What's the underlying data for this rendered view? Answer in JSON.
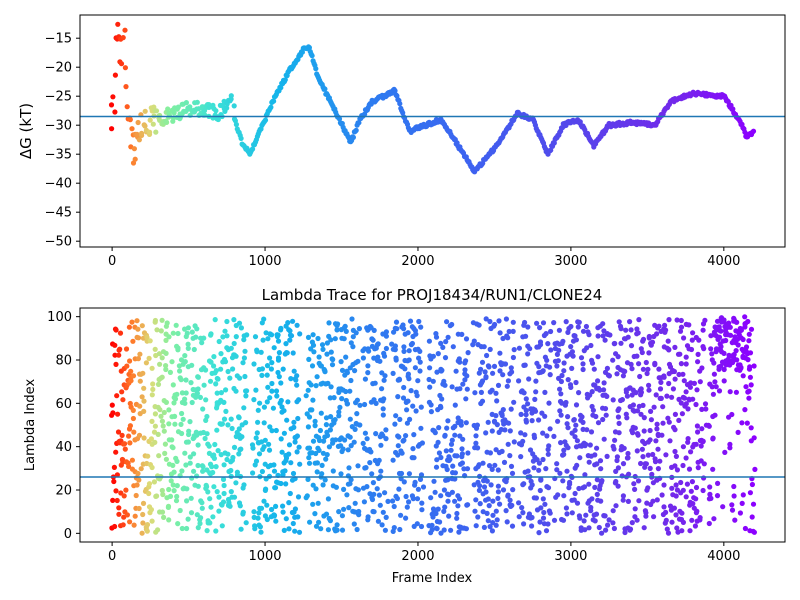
{
  "colors": {
    "reference_line": "#1f77b4",
    "colormap": "rainbow (red at start, violet at end)"
  },
  "chart_data": [
    {
      "type": "scatter",
      "title": "",
      "xlabel": "",
      "ylabel": "ΔG (kT)",
      "xlim": [
        -210,
        4400
      ],
      "ylim": [
        -51,
        -11
      ],
      "xticks": [
        0,
        1000,
        2000,
        3000,
        4000
      ],
      "yticks": [
        -15,
        -20,
        -25,
        -30,
        -35,
        -40,
        -45,
        -50
      ],
      "reference_line_y": -28.5,
      "trace_keypoints": [
        {
          "x": 0,
          "y": -30
        },
        {
          "x": 15,
          "y": -23
        },
        {
          "x": 30,
          "y": -13
        },
        {
          "x": 50,
          "y": -19
        },
        {
          "x": 70,
          "y": -13
        },
        {
          "x": 90,
          "y": -22
        },
        {
          "x": 110,
          "y": -30
        },
        {
          "x": 140,
          "y": -35
        },
        {
          "x": 170,
          "y": -31
        },
        {
          "x": 200,
          "y": -30
        },
        {
          "x": 300,
          "y": -29
        },
        {
          "x": 400,
          "y": -28
        },
        {
          "x": 500,
          "y": -27
        },
        {
          "x": 600,
          "y": -27.5
        },
        {
          "x": 700,
          "y": -28
        },
        {
          "x": 780,
          "y": -25
        },
        {
          "x": 800,
          "y": -29
        },
        {
          "x": 850,
          "y": -33
        },
        {
          "x": 900,
          "y": -35
        },
        {
          "x": 950,
          "y": -32
        },
        {
          "x": 1050,
          "y": -26
        },
        {
          "x": 1150,
          "y": -21
        },
        {
          "x": 1250,
          "y": -17
        },
        {
          "x": 1290,
          "y": -16.5
        },
        {
          "x": 1350,
          "y": -22
        },
        {
          "x": 1450,
          "y": -27
        },
        {
          "x": 1560,
          "y": -33
        },
        {
          "x": 1620,
          "y": -29
        },
        {
          "x": 1700,
          "y": -26
        },
        {
          "x": 1850,
          "y": -24
        },
        {
          "x": 1900,
          "y": -28
        },
        {
          "x": 1950,
          "y": -31
        },
        {
          "x": 2050,
          "y": -30
        },
        {
          "x": 2150,
          "y": -29
        },
        {
          "x": 2250,
          "y": -33
        },
        {
          "x": 2370,
          "y": -38
        },
        {
          "x": 2500,
          "y": -34
        },
        {
          "x": 2650,
          "y": -28
        },
        {
          "x": 2750,
          "y": -29
        },
        {
          "x": 2850,
          "y": -35
        },
        {
          "x": 2950,
          "y": -30
        },
        {
          "x": 3050,
          "y": -29
        },
        {
          "x": 3150,
          "y": -33.5
        },
        {
          "x": 3250,
          "y": -30
        },
        {
          "x": 3400,
          "y": -29.5
        },
        {
          "x": 3550,
          "y": -30
        },
        {
          "x": 3650,
          "y": -26
        },
        {
          "x": 3800,
          "y": -24.5
        },
        {
          "x": 4000,
          "y": -25
        },
        {
          "x": 4100,
          "y": -29
        },
        {
          "x": 4150,
          "y": -32
        },
        {
          "x": 4200,
          "y": -31
        }
      ]
    },
    {
      "type": "scatter",
      "title": "Lambda Trace for PROJ18434/RUN1/CLONE24",
      "xlabel": "Frame Index",
      "ylabel": "Lambda Index",
      "xlim": [
        -210,
        4400
      ],
      "ylim": [
        -4,
        104
      ],
      "xticks": [
        0,
        1000,
        2000,
        3000,
        4000
      ],
      "yticks": [
        0,
        20,
        40,
        60,
        80,
        100
      ],
      "reference_line_y": 26,
      "frame_range": [
        0,
        4200
      ],
      "lambda_range": [
        0,
        99
      ],
      "gap_frames": [
        [
          880,
          920
        ],
        [
          1230,
          1270
        ],
        [
          1620,
          1640
        ],
        [
          1800,
          1830
        ],
        [
          2030,
          2070
        ],
        [
          2330,
          2360
        ],
        [
          2630,
          2660
        ],
        [
          2870,
          2890
        ],
        [
          3250,
          3270
        ],
        [
          3880,
          3900
        ]
      ],
      "density_note": "dense block of high lambda (80-100) near frames 3950-4150"
    }
  ]
}
